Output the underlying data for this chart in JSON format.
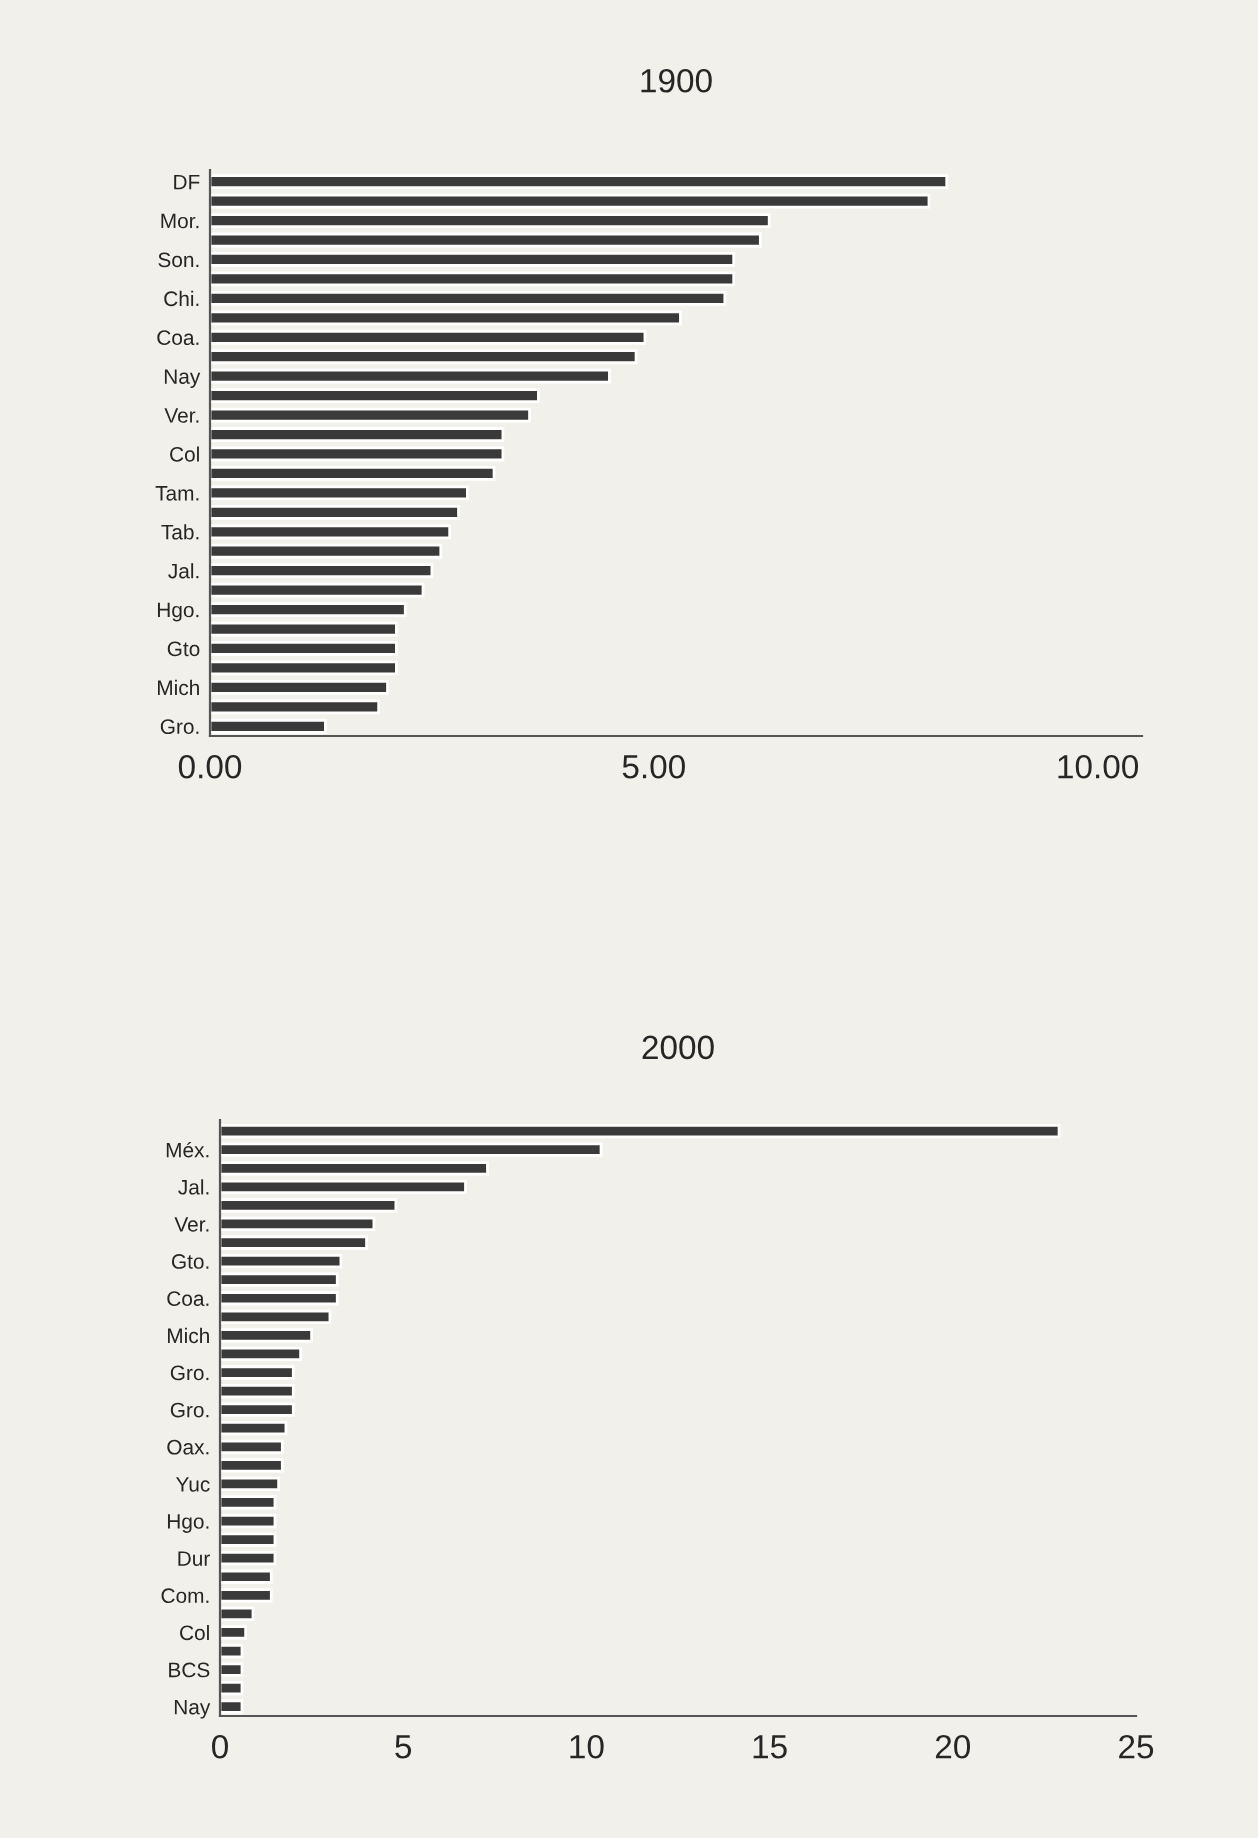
{
  "chart_data": [
    {
      "type": "bar",
      "orientation": "horizontal",
      "title": "1900",
      "categories": [
        "DF",
        null,
        "Mor.",
        null,
        "Son.",
        null,
        "Chi.",
        null,
        "Coa.",
        null,
        "Nay",
        null,
        "Ver.",
        null,
        "Col",
        null,
        "Tam.",
        null,
        "Tab.",
        null,
        "Jal.",
        null,
        "Hgo.",
        null,
        "Gto",
        null,
        "Mich",
        null,
        "Gro."
      ],
      "values": [
        8.3,
        8.1,
        6.3,
        6.2,
        5.9,
        5.9,
        5.8,
        5.3,
        4.9,
        4.8,
        4.5,
        3.7,
        3.6,
        3.3,
        3.3,
        3.2,
        2.9,
        2.8,
        2.7,
        2.6,
        2.5,
        2.4,
        2.2,
        2.1,
        2.1,
        2.1,
        2.0,
        1.9,
        1.3
      ],
      "color": "#3a3a3a",
      "xlim": [
        0,
        10.5
      ],
      "xticks": [
        {
          "value": 0,
          "label": "0.00"
        },
        {
          "value": 5,
          "label": "5.00"
        },
        {
          "value": 10,
          "label": "10.00"
        }
      ],
      "grid": false
    },
    {
      "type": "bar",
      "orientation": "horizontal",
      "title": "2000",
      "categories": [
        null,
        "Méx.",
        null,
        "Jal.",
        null,
        "Ver.",
        null,
        "Gto.",
        null,
        "Coa.",
        null,
        "Mich",
        null,
        "Gro.",
        null,
        "Gro.",
        null,
        "Oax.",
        null,
        "Yuc",
        null,
        "Hgo.",
        null,
        "Dur",
        null,
        "Com.",
        null,
        "Col",
        null,
        "BCS",
        null,
        "Nay"
      ],
      "values": [
        22.9,
        10.4,
        7.3,
        6.7,
        4.8,
        4.2,
        4.0,
        3.3,
        3.2,
        3.2,
        3.0,
        2.5,
        2.2,
        2.0,
        2.0,
        2.0,
        1.8,
        1.7,
        1.7,
        1.6,
        1.5,
        1.5,
        1.5,
        1.5,
        1.4,
        1.4,
        0.9,
        0.7,
        0.6,
        0.6,
        0.6,
        0.6
      ],
      "color": "#3a3a3a",
      "xlim": [
        0,
        25
      ],
      "xticks": [
        0,
        5,
        10,
        15,
        20,
        25
      ],
      "grid": false
    }
  ]
}
